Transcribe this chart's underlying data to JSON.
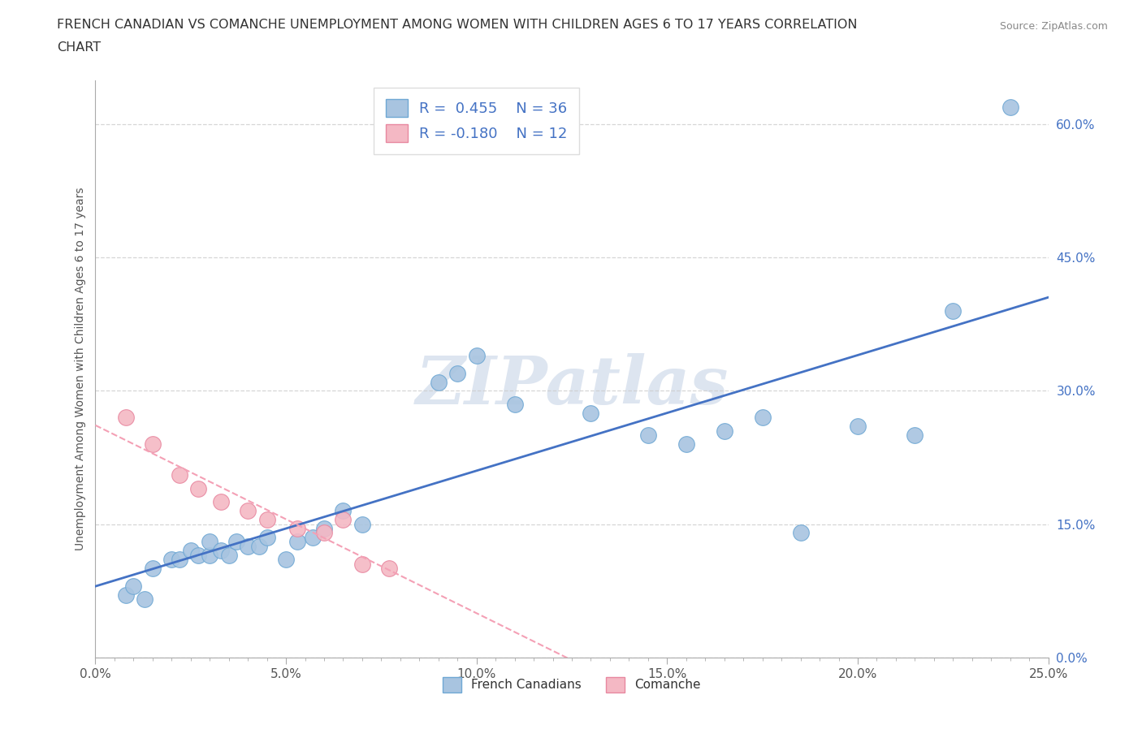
{
  "title_line1": "FRENCH CANADIAN VS COMANCHE UNEMPLOYMENT AMONG WOMEN WITH CHILDREN AGES 6 TO 17 YEARS CORRELATION",
  "title_line2": "CHART",
  "source": "Source: ZipAtlas.com",
  "ylabel": "Unemployment Among Women with Children Ages 6 to 17 years",
  "x_tick_labels": [
    "0.0%",
    "",
    "",
    "",
    "",
    "",
    "",
    "",
    "",
    "",
    "5.0%",
    "",
    "",
    "",
    "",
    "",
    "",
    "",
    "",
    "",
    "10.0%",
    "",
    "",
    "",
    "",
    "",
    "",
    "",
    "",
    "",
    "15.0%",
    "",
    "",
    "",
    "",
    "",
    "",
    "",
    "",
    "",
    "20.0%",
    "",
    "",
    "",
    "",
    "",
    "",
    "",
    "",
    "",
    "25.0%"
  ],
  "x_tick_positions": [
    0.0,
    0.005,
    0.01,
    0.015,
    0.02,
    0.025,
    0.03,
    0.035,
    0.04,
    0.045,
    0.05,
    0.055,
    0.06,
    0.065,
    0.07,
    0.075,
    0.08,
    0.085,
    0.09,
    0.095,
    0.1,
    0.105,
    0.11,
    0.115,
    0.12,
    0.125,
    0.13,
    0.135,
    0.14,
    0.145,
    0.15,
    0.155,
    0.16,
    0.165,
    0.17,
    0.175,
    0.18,
    0.185,
    0.19,
    0.195,
    0.2,
    0.205,
    0.21,
    0.215,
    0.22,
    0.225,
    0.23,
    0.235,
    0.24,
    0.245,
    0.25
  ],
  "x_major_ticks": [
    0.0,
    0.05,
    0.1,
    0.15,
    0.2,
    0.25
  ],
  "x_major_labels": [
    "0.0%",
    "5.0%",
    "10.0%",
    "15.0%",
    "20.0%",
    "25.0%"
  ],
  "y_ticks": [
    0.0,
    0.15,
    0.3,
    0.45,
    0.6
  ],
  "y_tick_labels": [
    "0.0%",
    "15.0%",
    "30.0%",
    "45.0%",
    "60.0%"
  ],
  "xlim": [
    0.0,
    0.25
  ],
  "ylim": [
    0.0,
    0.65
  ],
  "french_canadian_R": 0.455,
  "french_canadian_N": 36,
  "comanche_R": -0.18,
  "comanche_N": 12,
  "french_canadian_color": "#a8c4e0",
  "comanche_color": "#f4b8c4",
  "french_canadian_line_color": "#4472c4",
  "comanche_line_color": "#f4a0b5",
  "watermark": "ZIPatlas",
  "watermark_color": "#dde5f0",
  "background_color": "#ffffff",
  "grid_color": "#cccccc",
  "fc_x": [
    0.008,
    0.01,
    0.013,
    0.015,
    0.02,
    0.022,
    0.025,
    0.027,
    0.03,
    0.03,
    0.033,
    0.035,
    0.037,
    0.04,
    0.043,
    0.045,
    0.05,
    0.053,
    0.057,
    0.06,
    0.065,
    0.07,
    0.09,
    0.095,
    0.1,
    0.11,
    0.13,
    0.145,
    0.155,
    0.165,
    0.175,
    0.185,
    0.2,
    0.215,
    0.225,
    0.24
  ],
  "fc_y": [
    0.07,
    0.08,
    0.065,
    0.1,
    0.11,
    0.11,
    0.12,
    0.115,
    0.115,
    0.13,
    0.12,
    0.115,
    0.13,
    0.125,
    0.125,
    0.135,
    0.11,
    0.13,
    0.135,
    0.145,
    0.165,
    0.15,
    0.31,
    0.32,
    0.34,
    0.285,
    0.275,
    0.25,
    0.24,
    0.255,
    0.27,
    0.14,
    0.26,
    0.25,
    0.39,
    0.62
  ],
  "cm_x": [
    0.008,
    0.015,
    0.022,
    0.027,
    0.033,
    0.04,
    0.045,
    0.053,
    0.06,
    0.065,
    0.07,
    0.077
  ],
  "cm_y": [
    0.27,
    0.24,
    0.205,
    0.19,
    0.175,
    0.165,
    0.155,
    0.145,
    0.14,
    0.155,
    0.105,
    0.1
  ]
}
